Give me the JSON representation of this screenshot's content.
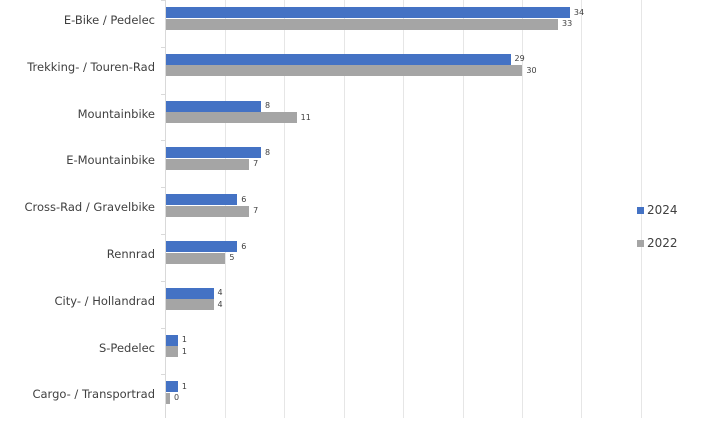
{
  "chart_data": {
    "type": "bar",
    "orientation": "horizontal",
    "title": "",
    "xlabel": "",
    "ylabel": "",
    "xlim": [
      0,
      40
    ],
    "grid_step": 5,
    "grid": true,
    "legend_position": "right",
    "categories": [
      "E-Bike / Pedelec",
      "Trekking- / Touren-Rad",
      "Mountainbike",
      "E-Mountainbike",
      "Cross-Rad / Gravelbike",
      "Rennrad",
      "City- / Hollandrad",
      "S-Pedelec",
      "Cargo- / Transportrad"
    ],
    "series": [
      {
        "name": "2024",
        "color": "#4472c4",
        "values": [
          34,
          29,
          8,
          8,
          6,
          6,
          4,
          1,
          1
        ]
      },
      {
        "name": "2022",
        "color": "#a5a5a5",
        "values": [
          33,
          30,
          11,
          7,
          7,
          5,
          4,
          1,
          0
        ]
      }
    ]
  }
}
